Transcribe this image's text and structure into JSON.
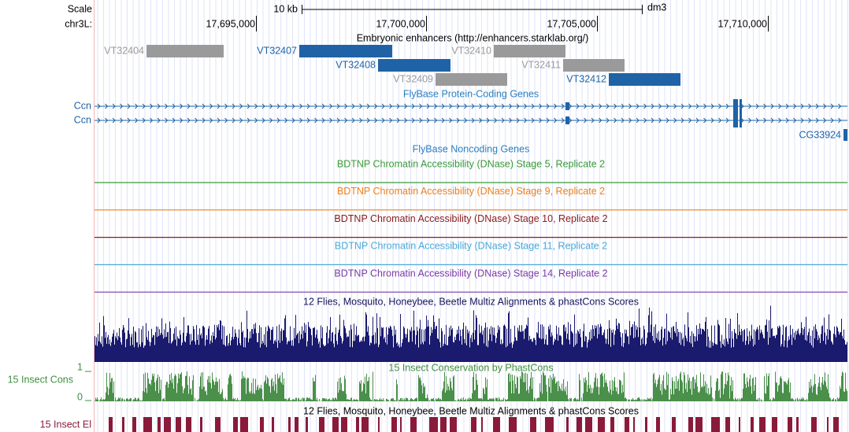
{
  "ruler": {
    "scale_label": "Scale",
    "scale_bar_label": "10 kb",
    "assembly": "dm3",
    "chrom_label": "chr3L:",
    "positions": [
      "17,695,000",
      "17,700,000",
      "17,705,000",
      "17,710,000"
    ]
  },
  "enhancers": {
    "title": "Embryonic enhancers (http://enhancers.starklab.org/)",
    "items": [
      "VT32404",
      "VT32407",
      "VT32410",
      "VT32408",
      "VT32411",
      "VT32409",
      "VT32412"
    ]
  },
  "protein_coding": {
    "title": "FlyBase Protein-Coding Genes",
    "genes": [
      "Ccn",
      "Ccn",
      "CG33924"
    ]
  },
  "noncoding": {
    "title": "FlyBase Noncoding Genes"
  },
  "dnase_tracks": [
    "BDTNP Chromatin Accessibility (DNase) Stage 5, Replicate 2",
    "BDTNP Chromatin Accessibility (DNase) Stage 9, Replicate 2",
    "BDTNP Chromatin Accessibility (DNase) Stage 10, Replicate 2",
    "BDTNP Chromatin Accessibility (DNase) Stage 11, Replicate 2",
    "BDTNP Chromatin Accessibility (DNase) Stage 14, Replicate 2"
  ],
  "multiz": {
    "title": "12 Flies, Mosquito, Honeybee, Beetle Multiz Alignments & phastCons Scores"
  },
  "phastcons": {
    "title": "15 Insect Conservation by PhastCons",
    "side_label": "15 Insect Cons",
    "axis_top": "1",
    "axis_bottom": "0"
  },
  "elements": {
    "title": "12 Flies, Mosquito, Honeybee, Beetle Multiz Alignments & phastCons Scores",
    "side_label": "15 Insect El"
  }
}
